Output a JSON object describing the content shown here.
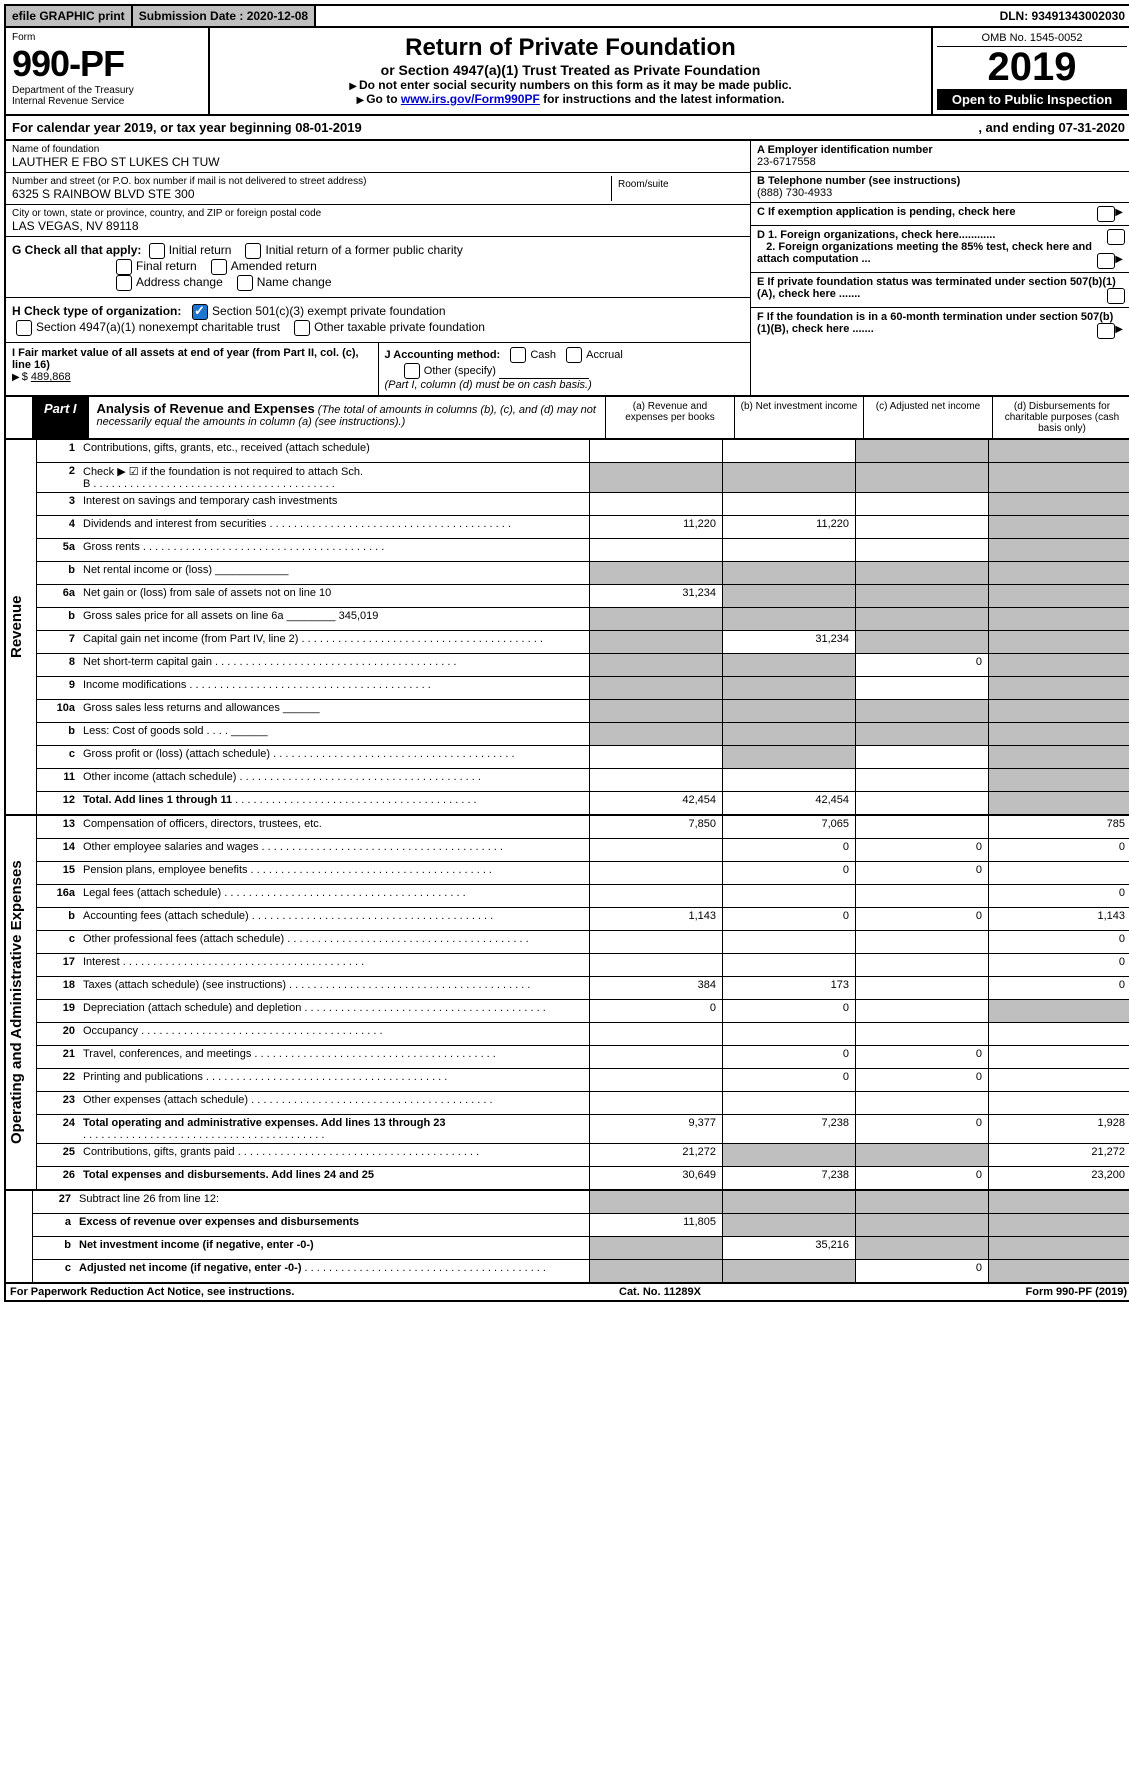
{
  "topbar": {
    "efile": "efile GRAPHIC print",
    "sub_label": "Submission Date : 2020-12-08",
    "dln": "DLN: 93491343002030"
  },
  "header": {
    "form_word": "Form",
    "form_no": "990-PF",
    "dept": "Department of the Treasury",
    "irs": "Internal Revenue Service",
    "title": "Return of Private Foundation",
    "subtitle": "or Section 4947(a)(1) Trust Treated as Private Foundation",
    "instr1": "Do not enter social security numbers on this form as it may be made public.",
    "instr2_pre": "Go to ",
    "instr2_link": "www.irs.gov/Form990PF",
    "instr2_post": " for instructions and the latest information.",
    "omb": "OMB No. 1545-0052",
    "year": "2019",
    "open": "Open to Public Inspection"
  },
  "calyear": {
    "left": "For calendar year 2019, or tax year beginning 08-01-2019",
    "right": ", and ending 07-31-2020"
  },
  "id": {
    "name_lbl": "Name of foundation",
    "name": "LAUTHER E FBO ST LUKES CH TUW",
    "addr_lbl": "Number and street (or P.O. box number if mail is not delivered to street address)",
    "addr": "6325 S RAINBOW BLVD STE 300",
    "suite_lbl": "Room/suite",
    "city_lbl": "City or town, state or province, country, and ZIP or foreign postal code",
    "city": "LAS VEGAS, NV  89118",
    "A_lbl": "A Employer identification number",
    "A_val": "23-6717558",
    "B_lbl": "B Telephone number (see instructions)",
    "B_val": "(888) 730-4933",
    "C_lbl": "C If exemption application is pending, check here",
    "D1": "D 1. Foreign organizations, check here............",
    "D2": "2. Foreign organizations meeting the 85% test, check here and attach computation ...",
    "E": "E  If private foundation status was terminated under section 507(b)(1)(A), check here .......",
    "F": "F  If the foundation is in a 60-month termination under section 507(b)(1)(B), check here ......."
  },
  "G": {
    "label": "G Check all that apply:",
    "opts": [
      "Initial return",
      "Initial return of a former public charity",
      "Final return",
      "Amended return",
      "Address change",
      "Name change"
    ]
  },
  "H": {
    "label": "H Check type of organization:",
    "o1": "Section 501(c)(3) exempt private foundation",
    "o2": "Section 4947(a)(1) nonexempt charitable trust",
    "o3": "Other taxable private foundation"
  },
  "I": {
    "label": "I Fair market value of all assets at end of year (from Part II, col. (c), line 16)",
    "val": "489,868"
  },
  "J": {
    "label": "J Accounting method:",
    "o1": "Cash",
    "o2": "Accrual",
    "o3": "Other (specify)",
    "note": "(Part I, column (d) must be on cash basis.)"
  },
  "part1": {
    "tag": "Part I",
    "title": "Analysis of Revenue and Expenses",
    "note": "(The total of amounts in columns (b), (c), and (d) may not necessarily equal the amounts in column (a) (see instructions).)",
    "col_a": "(a)   Revenue and expenses per books",
    "col_b": "(b)  Net investment income",
    "col_c": "(c)  Adjusted net income",
    "col_d": "(d)  Disbursements for charitable purposes (cash basis only)"
  },
  "sideLabels": {
    "rev": "Revenue",
    "exp": "Operating and Administrative Expenses"
  },
  "rows": [
    {
      "n": "1",
      "d": "Contributions, gifts, grants, etc., received (attach schedule)",
      "a": "",
      "b": "",
      "c": "g",
      "dcol": "g"
    },
    {
      "n": "2",
      "d": "Check ▶ ☑ if the foundation is not required to attach Sch. B",
      "dots": true,
      "a": "g",
      "b": "g",
      "c": "g",
      "dcol": "g"
    },
    {
      "n": "3",
      "d": "Interest on savings and temporary cash investments",
      "a": "",
      "b": "",
      "c": "",
      "dcol": "g"
    },
    {
      "n": "4",
      "d": "Dividends and interest from securities",
      "dots": true,
      "a": "11,220",
      "b": "11,220",
      "c": "",
      "dcol": "g"
    },
    {
      "n": "5a",
      "d": "Gross rents",
      "dots": true,
      "a": "",
      "b": "",
      "c": "",
      "dcol": "g"
    },
    {
      "n": "b",
      "d": "Net rental income or (loss)   ____________",
      "a": "g",
      "b": "g",
      "c": "g",
      "dcol": "g"
    },
    {
      "n": "6a",
      "d": "Net gain or (loss) from sale of assets not on line 10",
      "a": "31,234",
      "b": "g",
      "c": "g",
      "dcol": "g"
    },
    {
      "n": "b",
      "d": "Gross sales price for all assets on line 6a ________ 345,019",
      "a": "g",
      "b": "g",
      "c": "g",
      "dcol": "g"
    },
    {
      "n": "7",
      "d": "Capital gain net income (from Part IV, line 2)",
      "dots": true,
      "a": "g",
      "b": "31,234",
      "c": "g",
      "dcol": "g"
    },
    {
      "n": "8",
      "d": "Net short-term capital gain",
      "dots": true,
      "a": "g",
      "b": "g",
      "c": "0",
      "dcol": "g"
    },
    {
      "n": "9",
      "d": "Income modifications",
      "dots": true,
      "a": "g",
      "b": "g",
      "c": "",
      "dcol": "g"
    },
    {
      "n": "10a",
      "d": "Gross sales less returns and allowances  ______",
      "a": "g",
      "b": "g",
      "c": "g",
      "dcol": "g"
    },
    {
      "n": "b",
      "d": "Less: Cost of goods sold       . . . .  ______",
      "a": "g",
      "b": "g",
      "c": "g",
      "dcol": "g"
    },
    {
      "n": "c",
      "d": "Gross profit or (loss) (attach schedule)",
      "dots": true,
      "a": "",
      "b": "g",
      "c": "",
      "dcol": "g"
    },
    {
      "n": "11",
      "d": "Other income (attach schedule)",
      "dots": true,
      "a": "",
      "b": "",
      "c": "",
      "dcol": "g"
    },
    {
      "n": "12",
      "d": "Total. Add lines 1 through 11",
      "dots": true,
      "bold": true,
      "a": "42,454",
      "b": "42,454",
      "c": "",
      "dcol": "g"
    }
  ],
  "expRows": [
    {
      "n": "13",
      "d": "Compensation of officers, directors, trustees, etc.",
      "a": "7,850",
      "b": "7,065",
      "c": "",
      "dcol": "785"
    },
    {
      "n": "14",
      "d": "Other employee salaries and wages",
      "dots": true,
      "a": "",
      "b": "0",
      "c": "0",
      "dcol": "0"
    },
    {
      "n": "15",
      "d": "Pension plans, employee benefits",
      "dots": true,
      "a": "",
      "b": "0",
      "c": "0",
      "dcol": ""
    },
    {
      "n": "16a",
      "d": "Legal fees (attach schedule)",
      "dots": true,
      "a": "",
      "b": "",
      "c": "",
      "dcol": "0"
    },
    {
      "n": "b",
      "d": "Accounting fees (attach schedule)",
      "dots": true,
      "a": "1,143",
      "b": "0",
      "c": "0",
      "dcol": "1,143"
    },
    {
      "n": "c",
      "d": "Other professional fees (attach schedule)",
      "dots": true,
      "a": "",
      "b": "",
      "c": "",
      "dcol": "0"
    },
    {
      "n": "17",
      "d": "Interest",
      "dots": true,
      "a": "",
      "b": "",
      "c": "",
      "dcol": "0"
    },
    {
      "n": "18",
      "d": "Taxes (attach schedule) (see instructions)",
      "dots": true,
      "a": "384",
      "b": "173",
      "c": "",
      "dcol": "0"
    },
    {
      "n": "19",
      "d": "Depreciation (attach schedule) and depletion",
      "dots": true,
      "a": "0",
      "b": "0",
      "c": "",
      "dcol": "g"
    },
    {
      "n": "20",
      "d": "Occupancy",
      "dots": true,
      "a": "",
      "b": "",
      "c": "",
      "dcol": ""
    },
    {
      "n": "21",
      "d": "Travel, conferences, and meetings",
      "dots": true,
      "a": "",
      "b": "0",
      "c": "0",
      "dcol": ""
    },
    {
      "n": "22",
      "d": "Printing and publications",
      "dots": true,
      "a": "",
      "b": "0",
      "c": "0",
      "dcol": ""
    },
    {
      "n": "23",
      "d": "Other expenses (attach schedule)",
      "dots": true,
      "a": "",
      "b": "",
      "c": "",
      "dcol": ""
    },
    {
      "n": "24",
      "d": "Total operating and administrative expenses. Add lines 13 through 23",
      "dots": true,
      "bold": true,
      "a": "9,377",
      "b": "7,238",
      "c": "0",
      "dcol": "1,928"
    },
    {
      "n": "25",
      "d": "Contributions, gifts, grants paid",
      "dots": true,
      "a": "21,272",
      "b": "g",
      "c": "g",
      "dcol": "21,272"
    },
    {
      "n": "26",
      "d": "Total expenses and disbursements. Add lines 24 and 25",
      "bold": true,
      "a": "30,649",
      "b": "7,238",
      "c": "0",
      "dcol": "23,200"
    }
  ],
  "bottomRows": [
    {
      "n": "27",
      "d": "Subtract line 26 from line 12:",
      "a": "g",
      "b": "g",
      "c": "g",
      "dcol": "g"
    },
    {
      "n": "a",
      "d": "Excess of revenue over expenses and disbursements",
      "bold": true,
      "a": "11,805",
      "b": "g",
      "c": "g",
      "dcol": "g"
    },
    {
      "n": "b",
      "d": "Net investment income (if negative, enter -0-)",
      "bold": true,
      "a": "g",
      "b": "35,216",
      "c": "g",
      "dcol": "g"
    },
    {
      "n": "c",
      "d": "Adjusted net income (if negative, enter -0-)",
      "bold": true,
      "dots": true,
      "a": "g",
      "b": "g",
      "c": "0",
      "dcol": "g"
    }
  ],
  "footer": {
    "left": "For Paperwork Reduction Act Notice, see instructions.",
    "mid": "Cat. No. 11289X",
    "right": "Form 990-PF (2019)"
  }
}
